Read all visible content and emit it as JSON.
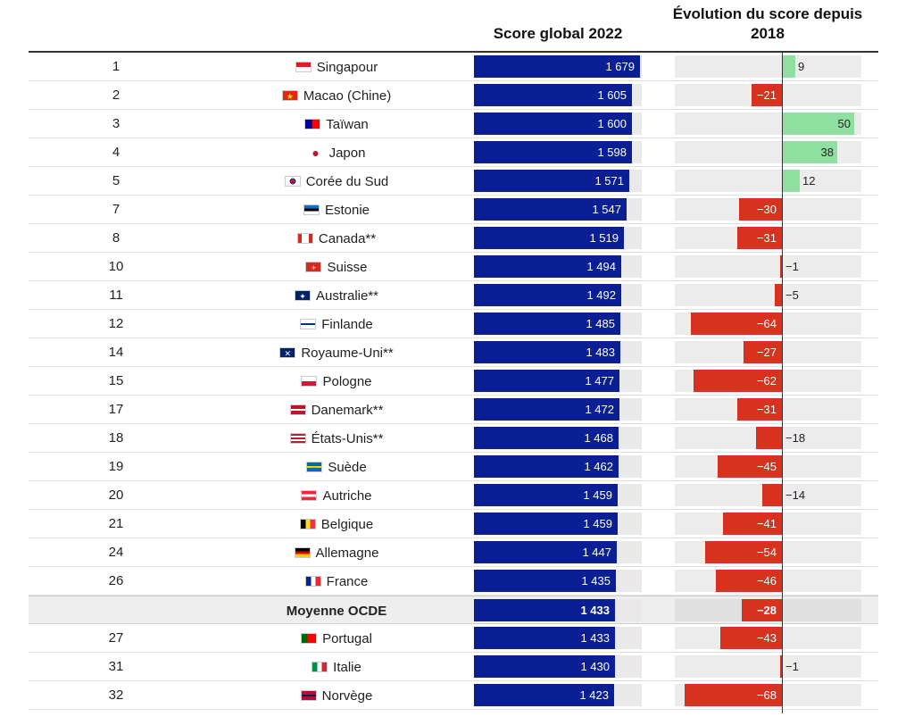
{
  "headers": {
    "score": "Score global 2022",
    "evolution": "Évolution du score depuis 2018"
  },
  "colors": {
    "score_bar": "#0a1f94",
    "negative": "#d8321f",
    "positive": "#8fe0a0",
    "track": "#e9e9e9"
  },
  "chart_data": {
    "type": "bar",
    "title": "",
    "series": [
      {
        "name": "Score global 2022"
      },
      {
        "name": "Évolution du score depuis 2018"
      }
    ],
    "score_range": [
      0,
      1700
    ],
    "evolution_range": [
      -68,
      50
    ],
    "rows": [
      {
        "rank": "1",
        "country": "Singapour",
        "flag": "singapore-flag-icon",
        "score": 1679,
        "score_label": "1 679",
        "evolution": 9,
        "evolution_label": "9"
      },
      {
        "rank": "2",
        "country": "Macao (Chine)",
        "flag": "china-flag-icon",
        "score": 1605,
        "score_label": "1 605",
        "evolution": -21,
        "evolution_label": "−21"
      },
      {
        "rank": "3",
        "country": "Taïwan",
        "flag": "taiwan-flag-icon",
        "score": 1600,
        "score_label": "1 600",
        "evolution": 50,
        "evolution_label": "50"
      },
      {
        "rank": "4",
        "country": "Japon",
        "flag": "japan-flag-icon",
        "score": 1598,
        "score_label": "1 598",
        "evolution": 38,
        "evolution_label": "38"
      },
      {
        "rank": "5",
        "country": "Corée du Sud",
        "flag": "south-korea-flag-icon",
        "score": 1571,
        "score_label": "1 571",
        "evolution": 12,
        "evolution_label": "12"
      },
      {
        "rank": "7",
        "country": "Estonie",
        "flag": "estonia-flag-icon",
        "score": 1547,
        "score_label": "1 547",
        "evolution": -30,
        "evolution_label": "−30"
      },
      {
        "rank": "8",
        "country": "Canada**",
        "flag": "canada-flag-icon",
        "score": 1519,
        "score_label": "1 519",
        "evolution": -31,
        "evolution_label": "−31"
      },
      {
        "rank": "10",
        "country": "Suisse",
        "flag": "switzerland-flag-icon",
        "score": 1494,
        "score_label": "1 494",
        "evolution": -1,
        "evolution_label": "−1"
      },
      {
        "rank": "11",
        "country": "Australie**",
        "flag": "australia-flag-icon",
        "score": 1492,
        "score_label": "1 492",
        "evolution": -5,
        "evolution_label": "−5"
      },
      {
        "rank": "12",
        "country": "Finlande",
        "flag": "finland-flag-icon",
        "score": 1485,
        "score_label": "1 485",
        "evolution": -64,
        "evolution_label": "−64"
      },
      {
        "rank": "14",
        "country": "Royaume-Uni**",
        "flag": "uk-flag-icon",
        "score": 1483,
        "score_label": "1 483",
        "evolution": -27,
        "evolution_label": "−27"
      },
      {
        "rank": "15",
        "country": "Pologne",
        "flag": "poland-flag-icon",
        "score": 1477,
        "score_label": "1 477",
        "evolution": -62,
        "evolution_label": "−62"
      },
      {
        "rank": "17",
        "country": "Danemark**",
        "flag": "denmark-flag-icon",
        "score": 1472,
        "score_label": "1 472",
        "evolution": -31,
        "evolution_label": "−31"
      },
      {
        "rank": "18",
        "country": "États-Unis**",
        "flag": "usa-flag-icon",
        "score": 1468,
        "score_label": "1 468",
        "evolution": -18,
        "evolution_label": "−18"
      },
      {
        "rank": "19",
        "country": "Suède",
        "flag": "sweden-flag-icon",
        "score": 1462,
        "score_label": "1 462",
        "evolution": -45,
        "evolution_label": "−45"
      },
      {
        "rank": "20",
        "country": "Autriche",
        "flag": "austria-flag-icon",
        "score": 1459,
        "score_label": "1 459",
        "evolution": -14,
        "evolution_label": "−14"
      },
      {
        "rank": "21",
        "country": "Belgique",
        "flag": "belgium-flag-icon",
        "score": 1459,
        "score_label": "1 459",
        "evolution": -41,
        "evolution_label": "−41"
      },
      {
        "rank": "24",
        "country": "Allemagne",
        "flag": "germany-flag-icon",
        "score": 1447,
        "score_label": "1 447",
        "evolution": -54,
        "evolution_label": "−54"
      },
      {
        "rank": "26",
        "country": "France",
        "flag": "france-flag-icon",
        "score": 1435,
        "score_label": "1 435",
        "evolution": -46,
        "evolution_label": "−46"
      },
      {
        "rank": "",
        "country": "Moyenne OCDE",
        "flag": "",
        "score": 1433,
        "score_label": "1 433",
        "evolution": -28,
        "evolution_label": "−28",
        "average": true
      },
      {
        "rank": "27",
        "country": "Portugal",
        "flag": "portugal-flag-icon",
        "score": 1433,
        "score_label": "1 433",
        "evolution": -43,
        "evolution_label": "−43"
      },
      {
        "rank": "31",
        "country": "Italie",
        "flag": "italy-flag-icon",
        "score": 1430,
        "score_label": "1 430",
        "evolution": -1,
        "evolution_label": "−1"
      },
      {
        "rank": "32",
        "country": "Norvège",
        "flag": "norway-flag-icon",
        "score": 1423,
        "score_label": "1 423",
        "evolution": -68,
        "evolution_label": "−68"
      }
    ]
  }
}
